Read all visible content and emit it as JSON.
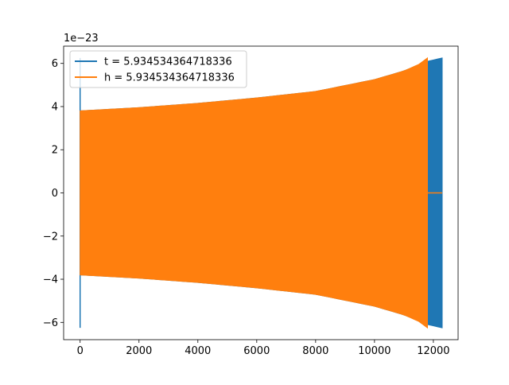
{
  "chart_data": {
    "type": "line",
    "title": "",
    "xlabel": "",
    "ylabel": "",
    "xlim": [
      -560,
      12840
    ],
    "ylim": [
      -6.8e-23,
      6.8e-23
    ],
    "x_ticks": [
      0,
      2000,
      4000,
      6000,
      8000,
      10000,
      12000
    ],
    "x_tick_labels": [
      "0",
      "2000",
      "4000",
      "6000",
      "8000",
      "10000",
      "12000"
    ],
    "y_ticks": [
      -6,
      -4,
      -2,
      0,
      2,
      4,
      6
    ],
    "y_tick_labels": [
      "−6",
      "−4",
      "−2",
      "0",
      "2",
      "4",
      "6"
    ],
    "y_offset_label": "1e−23",
    "grid": false,
    "legend_position": "top-left",
    "series": [
      {
        "name": "t = 5.934534364718336",
        "color": "#1f77b4",
        "description_envelope": {
          "x": [
            0,
            2000,
            4000,
            6000,
            8000,
            10000,
            11000,
            11800,
            12300
          ],
          "upper": [
            3.8,
            3.95,
            4.15,
            4.4,
            4.7,
            5.25,
            5.65,
            6.1,
            6.25
          ],
          "lower": [
            -3.8,
            -3.95,
            -4.15,
            -4.4,
            -4.7,
            -5.25,
            -5.65,
            -6.1,
            -6.25
          ]
        },
        "start_spike": {
          "x": 0,
          "max": 6.25,
          "min": -6.25
        },
        "x_end": 12300
      },
      {
        "name": "h = 5.934534364718336",
        "color": "#ff7f0e",
        "description_envelope": {
          "x": [
            0,
            2000,
            4000,
            6000,
            8000,
            10000,
            11000,
            11500,
            11800
          ],
          "upper": [
            3.8,
            3.95,
            4.15,
            4.4,
            4.7,
            5.25,
            5.65,
            5.95,
            6.25
          ],
          "lower": [
            -3.8,
            -3.95,
            -4.15,
            -4.4,
            -4.7,
            -5.25,
            -5.65,
            -5.95,
            -6.25
          ]
        },
        "tail_zero": {
          "x_start": 11800,
          "x_end": 12300,
          "y": 0
        },
        "x_end": 11800
      }
    ]
  }
}
